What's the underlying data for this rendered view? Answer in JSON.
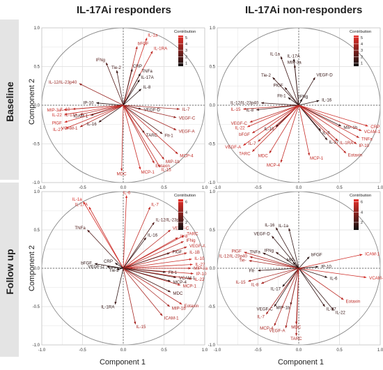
{
  "columns": [
    "IL-17Ai responders",
    "IL-17Ai non-responders"
  ],
  "rows": [
    "Baseline",
    "Follow up"
  ],
  "axis": {
    "x_label": "Component 1",
    "y_label": "Component 2"
  },
  "colors": {
    "low": "#111111",
    "high": "#e8302a",
    "grid": "#dcdcdc",
    "circle": "#888888"
  },
  "chart_data": [
    {
      "type": "scatter",
      "subtype": "correlation-circle-loadings",
      "panel": "IL-17Ai responders - Baseline",
      "xlabel": "Component 1",
      "ylabel": "Component 2",
      "xlim": [
        -1.0,
        1.0
      ],
      "ylim": [
        -1.0,
        1.0
      ],
      "ticks": {
        "x": [
          "-1.0",
          "-0.5",
          "0.0",
          "0.5",
          "1.0"
        ],
        "y": [
          "-1.0",
          "-0.5",
          "0.0",
          "0.5",
          "1.0"
        ]
      },
      "legend": {
        "title": "Contribution",
        "ticks": [
          "1",
          "2",
          "3",
          "4",
          "5"
        ],
        "range": [
          0.5,
          5.3
        ]
      },
      "arrows": [
        {
          "label": "IL-1a",
          "x": 0.29,
          "y": 0.87,
          "contribution": 4.8
        },
        {
          "label": "bFGF",
          "x": 0.17,
          "y": 0.76,
          "contribution": 4.2
        },
        {
          "label": "IL-1RA",
          "x": 0.36,
          "y": 0.7,
          "contribution": 4.5
        },
        {
          "label": "IFNg",
          "x": -0.21,
          "y": 0.55,
          "contribution": 2.0
        },
        {
          "label": "Tie-2",
          "x": -0.08,
          "y": 0.45,
          "contribution": 1.6
        },
        {
          "label": "CRP",
          "x": 0.11,
          "y": 0.47,
          "contribution": 1.3
        },
        {
          "label": "TNFa",
          "x": 0.21,
          "y": 0.41,
          "contribution": 1.2
        },
        {
          "label": "IL-17A",
          "x": 0.2,
          "y": 0.33,
          "contribution": 1.1
        },
        {
          "label": "IL-8",
          "x": 0.22,
          "y": 0.21,
          "contribution": 1.0
        },
        {
          "label": "IL-12/IL-23p40",
          "x": -0.54,
          "y": 0.28,
          "contribution": 3.5
        },
        {
          "label": "IP-10",
          "x": -0.33,
          "y": 0.03,
          "contribution": 1.2
        },
        {
          "label": "MIP-3a",
          "x": -0.73,
          "y": -0.06,
          "contribution": 4.6
        },
        {
          "label": "IL-10",
          "x": -0.62,
          "y": -0.05,
          "contribution": 4.3
        },
        {
          "label": "IL-22",
          "x": -0.72,
          "y": -0.12,
          "contribution": 4.7
        },
        {
          "label": "IL-17A",
          "x": -0.53,
          "y": -0.12,
          "contribution": 4.0
        },
        {
          "label": "ICAM-1",
          "x": -0.4,
          "y": -0.13,
          "contribution": 1.5
        },
        {
          "label": "IL-16",
          "x": -0.3,
          "y": -0.22,
          "contribution": 1.4
        },
        {
          "label": "PlGF",
          "x": -0.72,
          "y": -0.22,
          "contribution": 4.6
        },
        {
          "label": "VCAM-1",
          "x": -0.53,
          "y": -0.28,
          "contribution": 4.0
        },
        {
          "label": "IL-27",
          "x": -0.71,
          "y": -0.3,
          "contribution": 4.6
        },
        {
          "label": "VEGF-D",
          "x": 0.22,
          "y": -0.05,
          "contribution": 1.2
        },
        {
          "label": "IL-7",
          "x": 0.69,
          "y": -0.05,
          "contribution": 3.7
        },
        {
          "label": "VEGF-C",
          "x": 0.65,
          "y": -0.16,
          "contribution": 3.6
        },
        {
          "label": "VEGF-A",
          "x": 0.65,
          "y": -0.32,
          "contribution": 3.8
        },
        {
          "label": "TARC",
          "x": 0.26,
          "y": -0.36,
          "contribution": 1.5
        },
        {
          "label": "Flt-1",
          "x": 0.48,
          "y": -0.37,
          "contribution": 2.0
        },
        {
          "label": "MCP-4",
          "x": 0.67,
          "y": -0.63,
          "contribution": 4.4
        },
        {
          "label": "MIP-1b",
          "x": 0.5,
          "y": -0.7,
          "contribution": 4.1
        },
        {
          "label": "Eotaxin",
          "x": 0.38,
          "y": -0.75,
          "contribution": 4.3
        },
        {
          "label": "IL-15",
          "x": 0.45,
          "y": -0.8,
          "contribution": 4.5
        },
        {
          "label": "MCP-1",
          "x": 0.21,
          "y": -0.83,
          "contribution": 4.6
        },
        {
          "label": "MDC",
          "x": -0.02,
          "y": -0.85,
          "contribution": 4.4
        }
      ]
    },
    {
      "type": "scatter",
      "subtype": "correlation-circle-loadings",
      "panel": "IL-17Ai non-responders - Baseline",
      "xlabel": "Component 1",
      "ylabel": "Component 2",
      "xlim": [
        -1.0,
        1.0
      ],
      "ylim": [
        -1.0,
        1.0
      ],
      "ticks": {
        "x": [
          "-1.0",
          "-0.5",
          "0.0",
          "0.5",
          "1.0"
        ],
        "y": [
          "-1.0",
          "-0.5",
          "0.0",
          "0.5",
          "1.0"
        ]
      },
      "legend": {
        "title": "Contribution",
        "ticks": [
          "1",
          "2",
          "3",
          "4",
          "5"
        ],
        "range": [
          0.5,
          5.3
        ]
      },
      "arrows": [
        {
          "label": "IL-1a",
          "x": -0.22,
          "y": 0.63,
          "contribution": 1.5
        },
        {
          "label": "IL-17A",
          "x": -0.06,
          "y": 0.6,
          "contribution": 1.2
        },
        {
          "label": "MIP-3a",
          "x": -0.05,
          "y": 0.52,
          "contribution": 1.3
        },
        {
          "label": "Tie-2",
          "x": -0.32,
          "y": 0.36,
          "contribution": 1.4
        },
        {
          "label": "VEGF-D",
          "x": 0.2,
          "y": 0.36,
          "contribution": 1.3
        },
        {
          "label": "PlGF",
          "x": -0.17,
          "y": 0.23,
          "contribution": 1.3
        },
        {
          "label": "Flt-1",
          "x": -0.13,
          "y": 0.1,
          "contribution": 1.2
        },
        {
          "label": "IFNg",
          "x": 0.04,
          "y": 0.08,
          "contribution": 1.0
        },
        {
          "label": "IL-16",
          "x": 0.25,
          "y": 0.06,
          "contribution": 1.1
        },
        {
          "label": "IL-12/IL-23p40",
          "x": -0.46,
          "y": 0.03,
          "contribution": 1.4
        },
        {
          "label": "IL-15",
          "x": -0.68,
          "y": -0.05,
          "contribution": 4.4
        },
        {
          "label": "IL-8",
          "x": -0.52,
          "y": -0.06,
          "contribution": 1.4
        },
        {
          "label": "VEGF-C",
          "x": -0.6,
          "y": -0.22,
          "contribution": 4.3
        },
        {
          "label": "IL-22",
          "x": -0.63,
          "y": -0.28,
          "contribution": 4.6
        },
        {
          "label": "IL-10",
          "x": -0.28,
          "y": -0.28,
          "contribution": 1.2
        },
        {
          "label": "bFGF",
          "x": -0.57,
          "y": -0.36,
          "contribution": 4.2
        },
        {
          "label": "IL-7",
          "x": -0.5,
          "y": -0.47,
          "contribution": 4.3
        },
        {
          "label": "VEGF-A",
          "x": -0.68,
          "y": -0.52,
          "contribution": 4.6
        },
        {
          "label": "TARC",
          "x": -0.57,
          "y": -0.6,
          "contribution": 4.4
        },
        {
          "label": "MDC",
          "x": -0.36,
          "y": -0.62,
          "contribution": 4.5
        },
        {
          "label": "MCP-4",
          "x": -0.22,
          "y": -0.74,
          "contribution": 4.5
        },
        {
          "label": "MCP-1",
          "x": 0.13,
          "y": -0.65,
          "contribution": 4.5
        },
        {
          "label": "IL-6",
          "x": 0.27,
          "y": -0.33,
          "contribution": 1.3
        },
        {
          "label": "IL-27",
          "x": 0.35,
          "y": -0.45,
          "contribution": 1.3
        },
        {
          "label": "IL-1RA",
          "x": 0.48,
          "y": -0.46,
          "contribution": 4.1
        },
        {
          "label": "MIP-1b",
          "x": 0.52,
          "y": -0.27,
          "contribution": 1.5
        },
        {
          "label": "Eotaxin",
          "x": 0.58,
          "y": -0.62,
          "contribution": 4.3
        },
        {
          "label": "CRP",
          "x": 0.85,
          "y": -0.27,
          "contribution": 4.7
        },
        {
          "label": "VCAM-1",
          "x": 0.77,
          "y": -0.33,
          "contribution": 4.5
        },
        {
          "label": "TNFa",
          "x": 0.74,
          "y": -0.42,
          "contribution": 4.5
        },
        {
          "label": "IP-10",
          "x": 0.71,
          "y": -0.5,
          "contribution": 4.4
        }
      ]
    },
    {
      "type": "scatter",
      "subtype": "correlation-circle-loadings",
      "panel": "IL-17Ai responders - Follow up",
      "xlabel": "Component 1",
      "ylabel": "Component 2",
      "xlim": [
        -1.0,
        1.0
      ],
      "ylim": [
        -1.0,
        1.0
      ],
      "ticks": {
        "x": [
          "-1.0",
          "-0.5",
          "0.0",
          "0.5",
          "1.0"
        ],
        "y": [
          "-1.0",
          "-0.5",
          "0.0",
          "0.5",
          "1.0"
        ]
      },
      "legend": {
        "title": "Contribution",
        "ticks": [
          "2",
          "4",
          "6"
        ],
        "range": [
          0.5,
          6.5
        ]
      },
      "arrows": [
        {
          "label": "IL-1a",
          "x": -0.49,
          "y": 0.87,
          "contribution": 6.0
        },
        {
          "label": "IL-6",
          "x": 0.04,
          "y": 0.95,
          "contribution": 5.8
        },
        {
          "label": "IL-17A",
          "x": -0.42,
          "y": 0.8,
          "contribution": 5.6
        },
        {
          "label": "IL-7",
          "x": 0.33,
          "y": 0.8,
          "contribution": 5.5
        },
        {
          "label": "TNFa",
          "x": -0.44,
          "y": 0.5,
          "contribution": 2.2
        },
        {
          "label": "IL-12/IL-23p40",
          "x": 0.38,
          "y": 0.6,
          "contribution": 2.2
        },
        {
          "label": "VEGF-C",
          "x": 0.58,
          "y": 0.5,
          "contribution": 5.2
        },
        {
          "label": "IL-16",
          "x": 0.28,
          "y": 0.4,
          "contribution": 1.5
        },
        {
          "label": "IL-8",
          "x": 0.67,
          "y": 0.4,
          "contribution": 5.5
        },
        {
          "label": "TARC",
          "x": 0.75,
          "y": 0.43,
          "contribution": 5.5
        },
        {
          "label": "IFNg",
          "x": 0.74,
          "y": 0.35,
          "contribution": 5.3
        },
        {
          "label": "VEGF-A",
          "x": 0.78,
          "y": 0.28,
          "contribution": 5.3
        },
        {
          "label": "IL-1B",
          "x": 0.78,
          "y": 0.2,
          "contribution": 5.2
        },
        {
          "label": "PlGF",
          "x": 0.57,
          "y": 0.2,
          "contribution": 2.0
        },
        {
          "label": "IL-10",
          "x": 0.84,
          "y": 0.12,
          "contribution": 5.6
        },
        {
          "label": "IL-27",
          "x": 0.85,
          "y": 0.05,
          "contribution": 5.6
        },
        {
          "label": "MIP-3a",
          "x": 0.83,
          "y": 0.0,
          "contribution": 5.5
        },
        {
          "label": "IP-10",
          "x": 0.86,
          "y": -0.07,
          "contribution": 5.5
        },
        {
          "label": "IL-22",
          "x": 0.84,
          "y": -0.14,
          "contribution": 5.5
        },
        {
          "label": "VCAM-1",
          "x": 0.65,
          "y": -0.12,
          "contribution": 2.0
        },
        {
          "label": "MCP-1",
          "x": 0.7,
          "y": -0.22,
          "contribution": 5.1
        },
        {
          "label": "MCP-4",
          "x": 0.58,
          "y": -0.17,
          "contribution": 1.8
        },
        {
          "label": "Flt-1",
          "x": 0.52,
          "y": -0.05,
          "contribution": 1.8
        },
        {
          "label": "MDC",
          "x": 0.58,
          "y": -0.31,
          "contribution": 2.0
        },
        {
          "label": "Eotaxin",
          "x": 0.72,
          "y": -0.47,
          "contribution": 5.0
        },
        {
          "label": "MIP-1b",
          "x": 0.57,
          "y": -0.5,
          "contribution": 4.8
        },
        {
          "label": "ICAM-1",
          "x": 0.48,
          "y": -0.62,
          "contribution": 4.8
        },
        {
          "label": "IL-15",
          "x": 0.15,
          "y": -0.73,
          "contribution": 4.6
        },
        {
          "label": "VEGF-D",
          "x": -0.2,
          "y": 0.02,
          "contribution": 1.0
        },
        {
          "label": "Tie-2",
          "x": -0.08,
          "y": -0.02,
          "contribution": 1.0
        },
        {
          "label": "bFGF",
          "x": -0.35,
          "y": 0.06,
          "contribution": 1.3
        },
        {
          "label": "CRP",
          "x": -0.1,
          "y": 0.07,
          "contribution": 1.1
        },
        {
          "label": "IL-1RA",
          "x": -0.1,
          "y": -0.47,
          "contribution": 1.4
        }
      ]
    },
    {
      "type": "scatter",
      "subtype": "correlation-circle-loadings",
      "panel": "IL-17Ai non-responders - Follow up",
      "xlabel": "Component 1",
      "ylabel": "Component 2",
      "xlim": [
        -1.0,
        1.0
      ],
      "ylim": [
        -1.0,
        1.0
      ],
      "ticks": {
        "x": [
          "-1.0",
          "-0.5",
          "0.0",
          "0.5",
          "1.0"
        ],
        "y": [
          "-1.0",
          "-0.5",
          "0.0",
          "0.5",
          "1.0"
        ]
      },
      "legend": {
        "title": "Contribution",
        "ticks": [
          "2",
          "4",
          "6"
        ],
        "range": [
          0.5,
          6.5
        ]
      },
      "arrows": [
        {
          "label": "IL-16",
          "x": -0.28,
          "y": 0.53,
          "contribution": 1.5
        },
        {
          "label": "IL-1a",
          "x": -0.12,
          "y": 0.52,
          "contribution": 1.4
        },
        {
          "label": "VEGF-D",
          "x": -0.33,
          "y": 0.42,
          "contribution": 1.4
        },
        {
          "label": "PlGF",
          "x": -0.67,
          "y": 0.21,
          "contribution": 5.0
        },
        {
          "label": "TNFa",
          "x": -0.44,
          "y": 0.2,
          "contribution": 1.6
        },
        {
          "label": "IFNg",
          "x": -0.28,
          "y": 0.21,
          "contribution": 1.5
        },
        {
          "label": "bFGF",
          "x": 0.13,
          "y": 0.15,
          "contribution": 1.3
        },
        {
          "label": "IL-12/IL-23p40",
          "x": -0.6,
          "y": 0.15,
          "contribution": 4.8
        },
        {
          "label": "Tie-",
          "x": -0.61,
          "y": 0.1,
          "contribution": 4.8
        },
        {
          "label": "MIP-",
          "x": -0.07,
          "y": 0.08,
          "contribution": 1.2
        },
        {
          "label": "IP-10",
          "x": 0.24,
          "y": 0.02,
          "contribution": 1.2
        },
        {
          "label": "Flt-",
          "x": -0.5,
          "y": -0.03,
          "contribution": 1.4
        },
        {
          "label": "IL-6",
          "x": 0.35,
          "y": -0.12,
          "contribution": 1.3
        },
        {
          "label": "ICAM-1",
          "x": 0.78,
          "y": 0.18,
          "contribution": 5.8
        },
        {
          "label": "VCAM-1",
          "x": 0.83,
          "y": -0.12,
          "contribution": 5.8
        },
        {
          "label": "IL-15",
          "x": -0.62,
          "y": -0.17,
          "contribution": 4.7
        },
        {
          "label": "IL-8",
          "x": -0.46,
          "y": -0.2,
          "contribution": 4.5
        },
        {
          "label": "Eotaxin",
          "x": 0.55,
          "y": -0.41,
          "contribution": 5.3
        },
        {
          "label": "IL-17",
          "x": -0.2,
          "y": -0.24,
          "contribution": 1.2
        },
        {
          "label": "IL-27",
          "x": 0.32,
          "y": -0.5,
          "contribution": 1.5
        },
        {
          "label": "IL-22",
          "x": 0.43,
          "y": -0.55,
          "contribution": 1.5
        },
        {
          "label": "VEGF-C",
          "x": -0.3,
          "y": -0.5,
          "contribution": 1.5
        },
        {
          "label": "MIP-1b",
          "x": -0.1,
          "y": -0.48,
          "contribution": 1.4
        },
        {
          "label": "IL-7",
          "x": -0.4,
          "y": -0.6,
          "contribution": 4.6
        },
        {
          "label": "MCP-4",
          "x": -0.3,
          "y": -0.75,
          "contribution": 4.8
        },
        {
          "label": "VEGF-A",
          "x": -0.16,
          "y": -0.78,
          "contribution": 4.7
        },
        {
          "label": "MDC",
          "x": -0.03,
          "y": -0.73,
          "contribution": 4.6
        },
        {
          "label": "TARC",
          "x": -0.03,
          "y": -0.88,
          "contribution": 4.8
        }
      ]
    }
  ]
}
